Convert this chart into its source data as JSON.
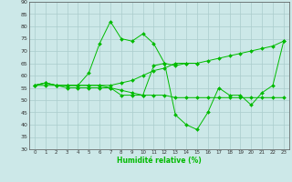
{
  "xlabel": "Humidité relative (%)",
  "bg_color": "#cce8e8",
  "grid_color": "#aacccc",
  "line_color": "#00bb00",
  "xlim": [
    -0.5,
    23.5
  ],
  "ylim": [
    30,
    90
  ],
  "yticks": [
    30,
    35,
    40,
    45,
    50,
    55,
    60,
    65,
    70,
    75,
    80,
    85,
    90
  ],
  "xticks": [
    0,
    1,
    2,
    3,
    4,
    5,
    6,
    7,
    8,
    9,
    10,
    11,
    12,
    13,
    14,
    15,
    16,
    17,
    18,
    19,
    20,
    21,
    22,
    23
  ],
  "series": [
    {
      "x": [
        0,
        1,
        2,
        3,
        4,
        5,
        6,
        7,
        8,
        9,
        10,
        11,
        12,
        13,
        14,
        15
      ],
      "y": [
        56,
        57,
        56,
        56,
        56,
        61,
        73,
        82,
        75,
        74,
        77,
        73,
        65,
        64,
        65,
        65
      ]
    },
    {
      "x": [
        0,
        1,
        2,
        3,
        4,
        5,
        6,
        7,
        8,
        9,
        10,
        11,
        12,
        13,
        14,
        15,
        16,
        17,
        18,
        19,
        20,
        21,
        22,
        23
      ],
      "y": [
        56,
        57,
        56,
        56,
        56,
        56,
        56,
        56,
        57,
        58,
        60,
        62,
        63,
        65,
        65,
        65,
        66,
        67,
        68,
        69,
        70,
        71,
        72,
        74
      ]
    },
    {
      "x": [
        0,
        1,
        2,
        3,
        4,
        5,
        6,
        7,
        8,
        9,
        10,
        11,
        12,
        13,
        14,
        15,
        16,
        17,
        18,
        19,
        20,
        21,
        22,
        23
      ],
      "y": [
        56,
        57,
        56,
        56,
        56,
        56,
        56,
        55,
        54,
        53,
        52,
        52,
        52,
        51,
        51,
        51,
        51,
        51,
        51,
        51,
        51,
        51,
        51,
        51
      ]
    },
    {
      "x": [
        0,
        1,
        2,
        3,
        4,
        5,
        6,
        7,
        8,
        9,
        10,
        11,
        12,
        13,
        14,
        15,
        16,
        17,
        18,
        19,
        20,
        21,
        22,
        23
      ],
      "y": [
        56,
        56,
        56,
        55,
        55,
        55,
        55,
        55,
        52,
        52,
        52,
        64,
        65,
        44,
        40,
        38,
        45,
        55,
        52,
        52,
        48,
        53,
        56,
        74
      ]
    }
  ]
}
